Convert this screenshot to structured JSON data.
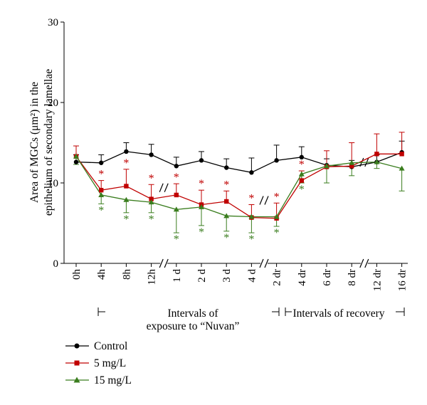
{
  "chart_data": {
    "type": "line",
    "ylabel_line1": "Area of MGCs (μm²) in the",
    "ylabel_line2": "epithelium of secondary lamellae",
    "ylim": [
      0,
      30
    ],
    "yticks": [
      0,
      10,
      20,
      30
    ],
    "grid": false,
    "legend_position": "bottom-left",
    "categories": [
      "0h",
      "4h",
      "8h",
      "12h",
      "1 d",
      "2 d",
      "3 d",
      "4 d",
      "2 dr",
      "4 dr",
      "6 dr",
      "8 dr",
      "12 dr",
      "16 dr"
    ],
    "axis_breaks_after": [
      "12h",
      "4 d",
      "8 dr"
    ],
    "bracket_exposure_label_line1": "Intervals of",
    "bracket_exposure_label_line2": "exposure to “Nuvan”",
    "bracket_recovery_label": "Intervals of recovery",
    "series": [
      {
        "name": "Control",
        "color": "#000000",
        "marker": "circle",
        "values": [
          12.6,
          12.5,
          13.9,
          13.5,
          12.1,
          12.8,
          11.9,
          11.3,
          12.8,
          13.2,
          12.2,
          12.0,
          12.6,
          13.8
        ],
        "errors": [
          0.9,
          1.0,
          1.1,
          1.3,
          1.1,
          1.1,
          1.1,
          1.8,
          1.9,
          1.3,
          0.8,
          0.8,
          0.9,
          1.4
        ],
        "error_direction": "up"
      },
      {
        "name": "5 mg/L",
        "color": "#c00000",
        "marker": "square",
        "values": [
          13.3,
          9.1,
          9.6,
          8.0,
          8.5,
          7.3,
          7.7,
          5.7,
          5.6,
          10.3,
          12.0,
          12.1,
          13.6,
          13.6
        ],
        "errors": [
          1.3,
          1.2,
          2.1,
          1.8,
          1.4,
          1.8,
          1.3,
          1.6,
          1.9,
          1.2,
          2.0,
          2.9,
          2.5,
          2.7
        ],
        "error_direction": "up",
        "significance": [
          "",
          "*",
          "*",
          "*",
          "*",
          "*",
          "*",
          "*",
          "*",
          "*",
          "",
          "",
          "",
          ""
        ]
      },
      {
        "name": "15 mg/L",
        "color": "#3a7d1e",
        "marker": "triangle",
        "values": [
          13.3,
          8.5,
          7.9,
          7.6,
          6.7,
          7.0,
          5.9,
          5.8,
          5.8,
          11.1,
          12.1,
          12.5,
          12.6,
          11.8
        ],
        "errors": [
          1.0,
          1.1,
          1.6,
          1.3,
          2.9,
          2.3,
          1.9,
          2.0,
          1.2,
          1.1,
          2.1,
          1.6,
          0.8,
          2.8
        ],
        "error_direction": "down",
        "significance": [
          "",
          "*",
          "*",
          "*",
          "*",
          "*",
          "*",
          "*",
          "*",
          "*",
          "",
          "",
          "",
          ""
        ]
      }
    ]
  }
}
